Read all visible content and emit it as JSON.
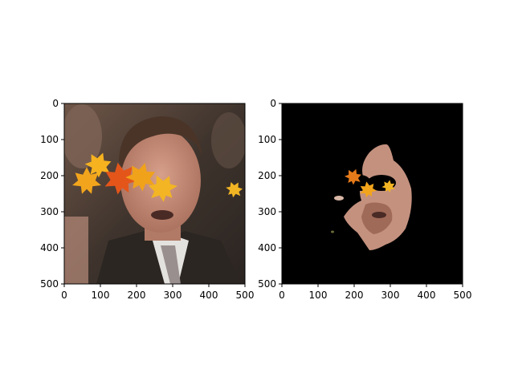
{
  "figure": {
    "background": "#ffffff",
    "panels": [
      {
        "id": "left",
        "content": "face-with-leaves-overlay",
        "x_ticks": [
          "0",
          "100",
          "200",
          "300",
          "400",
          "500"
        ],
        "y_ticks": [
          "0",
          "100",
          "200",
          "300",
          "400",
          "500"
        ],
        "xlim": [
          0,
          500
        ],
        "ylim": [
          500,
          0
        ]
      },
      {
        "id": "right",
        "content": "face-segmentation-mask",
        "mask_background": "#000000",
        "x_ticks": [
          "0",
          "100",
          "200",
          "300",
          "400",
          "500"
        ],
        "y_ticks": [
          "0",
          "100",
          "200",
          "300",
          "400",
          "500"
        ],
        "xlim": [
          0,
          500
        ],
        "ylim": [
          500,
          0
        ]
      }
    ]
  }
}
